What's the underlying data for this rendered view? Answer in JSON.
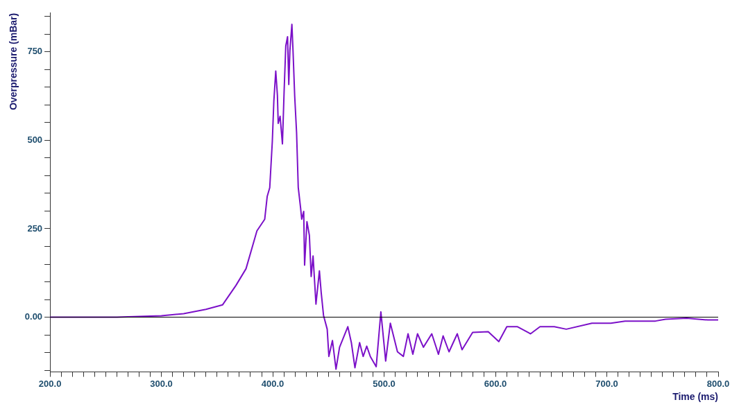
{
  "chart_data": {
    "type": "line",
    "xlabel": "Time (ms)",
    "ylabel": "Overpressure (mBar)",
    "x": [
      200,
      260,
      280,
      300,
      320,
      340,
      355,
      367,
      376,
      385.8,
      392.8,
      395,
      397.3,
      399.6,
      401,
      402.7,
      404.2,
      404.9,
      406.6,
      408.7,
      410.2,
      411.7,
      413.3,
      414.4,
      415.4,
      417.2,
      418.2,
      419.7,
      421.4,
      422.9,
      425,
      426,
      427.8,
      428.6,
      430.7,
      432.9,
      434.5,
      436.2,
      438.8,
      441.9,
      443.5,
      445.6,
      448.9,
      450.4,
      453.6,
      456.8,
      460,
      467.4,
      470.6,
      473.8,
      478,
      481.2,
      484.4,
      487.6,
      492.9,
      497.1,
      501.4,
      505.6,
      512,
      517.3,
      521.5,
      525.8,
      530,
      535.3,
      542.8,
      548.8,
      553,
      558.3,
      565.7,
      570,
      579.5,
      593.5,
      603,
      610.2,
      619.8,
      631.5,
      640,
      652.8,
      663.6,
      686.6,
      703.6,
      716.4,
      743.7,
      752.7,
      771.7,
      790.8,
      800
    ],
    "series": [
      {
        "color": "#7b10c8",
        "values": [
          0,
          0,
          2,
          4,
          10,
          22,
          35,
          90,
          137,
          244,
          277,
          341,
          366,
          496,
          612,
          696,
          626,
          548,
          568,
          490,
          638,
          767,
          793,
          658,
          754,
          828,
          754,
          626,
          522,
          367,
          309,
          277,
          299,
          147,
          270,
          231,
          115,
          173,
          37,
          131,
          70,
          5,
          -34,
          -111,
          -66,
          -147,
          -85,
          -27,
          -72,
          -143,
          -72,
          -111,
          -82,
          -111,
          -140,
          15,
          -124,
          -17,
          -98,
          -111,
          -47,
          -105,
          -47,
          -85,
          -47,
          -105,
          -53,
          -98,
          -47,
          -92,
          -43,
          -41,
          -69,
          -27,
          -27,
          -47,
          -27,
          -27,
          -34,
          -17,
          -17,
          -11,
          -11,
          -6,
          -3,
          -8,
          -8
        ]
      }
    ],
    "xlim": [
      200,
      800
    ],
    "xticks": [
      {
        "value": 200,
        "label": "200.0"
      },
      {
        "value": 210,
        "label": null
      },
      {
        "value": 220,
        "label": null
      },
      {
        "value": 230,
        "label": null
      },
      {
        "value": 240,
        "label": null
      },
      {
        "value": 250,
        "label": null
      },
      {
        "value": 260,
        "label": null
      },
      {
        "value": 270,
        "label": null
      },
      {
        "value": 280,
        "label": null
      },
      {
        "value": 290,
        "label": null
      },
      {
        "value": 300,
        "label": "300.0"
      },
      {
        "value": 310,
        "label": null
      },
      {
        "value": 320,
        "label": null
      },
      {
        "value": 330,
        "label": null
      },
      {
        "value": 340,
        "label": null
      },
      {
        "value": 350,
        "label": null
      },
      {
        "value": 360,
        "label": null
      },
      {
        "value": 370,
        "label": null
      },
      {
        "value": 380,
        "label": null
      },
      {
        "value": 390,
        "label": null
      },
      {
        "value": 400,
        "label": "400.0"
      },
      {
        "value": 410,
        "label": null
      },
      {
        "value": 420,
        "label": null
      },
      {
        "value": 430,
        "label": null
      },
      {
        "value": 440,
        "label": null
      },
      {
        "value": 450,
        "label": null
      },
      {
        "value": 460,
        "label": null
      },
      {
        "value": 470,
        "label": null
      },
      {
        "value": 480,
        "label": null
      },
      {
        "value": 490,
        "label": null
      },
      {
        "value": 500,
        "label": "500.0"
      },
      {
        "value": 510,
        "label": null
      },
      {
        "value": 520,
        "label": null
      },
      {
        "value": 530,
        "label": null
      },
      {
        "value": 540,
        "label": null
      },
      {
        "value": 550,
        "label": null
      },
      {
        "value": 560,
        "label": null
      },
      {
        "value": 570,
        "label": null
      },
      {
        "value": 580,
        "label": null
      },
      {
        "value": 590,
        "label": null
      },
      {
        "value": 600,
        "label": "600.0"
      },
      {
        "value": 610,
        "label": null
      },
      {
        "value": 620,
        "label": null
      },
      {
        "value": 630,
        "label": null
      },
      {
        "value": 640,
        "label": null
      },
      {
        "value": 650,
        "label": null
      },
      {
        "value": 660,
        "label": null
      },
      {
        "value": 670,
        "label": null
      },
      {
        "value": 680,
        "label": null
      },
      {
        "value": 690,
        "label": null
      },
      {
        "value": 700,
        "label": "700.0"
      },
      {
        "value": 710,
        "label": null
      },
      {
        "value": 720,
        "label": null
      },
      {
        "value": 730,
        "label": null
      },
      {
        "value": 740,
        "label": null
      },
      {
        "value": 750,
        "label": null
      },
      {
        "value": 760,
        "label": null
      },
      {
        "value": 770,
        "label": null
      },
      {
        "value": 780,
        "label": null
      },
      {
        "value": 790,
        "label": null
      },
      {
        "value": 800,
        "label": "800.0"
      }
    ],
    "ylim": [
      -155,
      860
    ],
    "yticks": [
      {
        "value": -150,
        "label": null
      },
      {
        "value": -100,
        "label": null
      },
      {
        "value": -50,
        "label": null
      },
      {
        "value": 0,
        "label": "0.00"
      },
      {
        "value": 50,
        "label": null
      },
      {
        "value": 100,
        "label": null
      },
      {
        "value": 150,
        "label": null
      },
      {
        "value": 200,
        "label": null
      },
      250,
      {
        "value": 300,
        "label": null
      },
      {
        "value": 350,
        "label": null
      },
      {
        "value": 400,
        "label": null
      },
      {
        "value": 450,
        "label": null
      },
      500,
      {
        "value": 550,
        "label": null
      },
      {
        "value": 600,
        "label": null
      },
      {
        "value": 650,
        "label": null
      },
      {
        "value": 700,
        "label": null
      },
      750,
      {
        "value": 800,
        "label": null
      },
      {
        "value": 850,
        "label": null
      }
    ],
    "ref_lines": [
      {
        "axis": "y",
        "value": 0,
        "color": "#000000"
      }
    ],
    "grid": false,
    "legend": false,
    "marker": "none",
    "line_style": "solid"
  }
}
